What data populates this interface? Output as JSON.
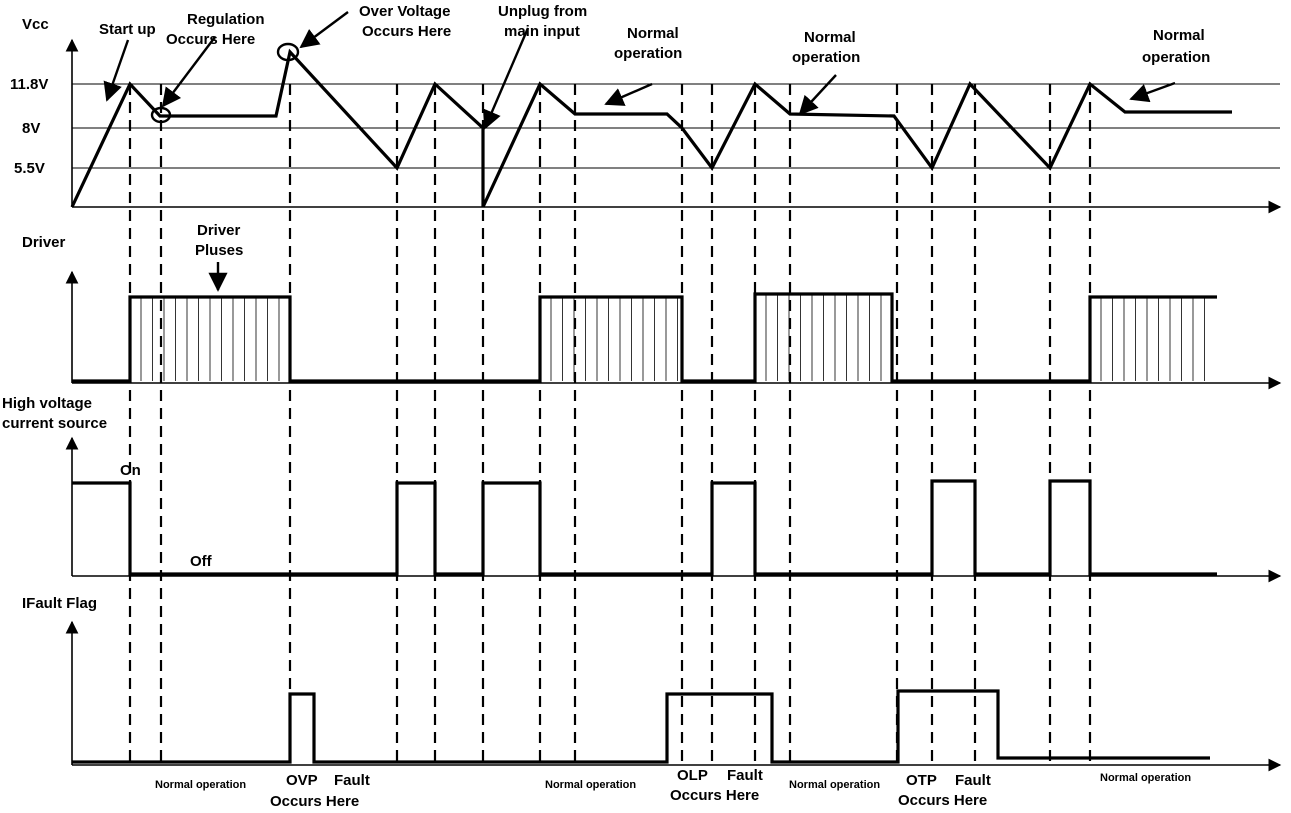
{
  "vcc": {
    "title": "Vcc",
    "levels": [
      {
        "label": "11.8V",
        "value": 11.8
      },
      {
        "label": "8V",
        "value": 8
      },
      {
        "label": "5.5V",
        "value": 5.5
      }
    ]
  },
  "driver": {
    "title": "Driver",
    "pulses_label_line1": "Driver",
    "pulses_label_line2": "Pluses"
  },
  "hv_source": {
    "title_line1": "High voltage",
    "title_line2": "current source",
    "on_label": "On",
    "off_label": "Off"
  },
  "fault": {
    "title": "IFault Flag"
  },
  "annotations": {
    "start_up": "Start up",
    "regulation_line1": "Regulation",
    "regulation_line2": "Occurs Here",
    "over_voltage_line1": "Over Voltage",
    "over_voltage_line2": "Occurs Here",
    "unplug_line1": "Unplug from",
    "unplug_line2": "main input",
    "normal_op1_line1": "Normal",
    "normal_op1_line2": "operation",
    "normal_op2_line1": "Normal",
    "normal_op2_line2": "operation",
    "normal_op3_line1": "Normal",
    "normal_op3_line2": "operation"
  },
  "bottom_labels": {
    "normal_operation_1": "Normal operation",
    "ovp": "OVP",
    "ovp_fault": "Fault",
    "ovp_occurs": "Occurs Here",
    "normal_operation_2": "Normal operation",
    "olp": "OLP",
    "olp_fault": "Fault",
    "olp_occurs": "Occurs Here",
    "normal_operation_3": "Normal operation",
    "otp": "OTP",
    "otp_fault": "Fault",
    "otp_occurs": "Occurs Here",
    "normal_operation_4": "Normal operation"
  }
}
